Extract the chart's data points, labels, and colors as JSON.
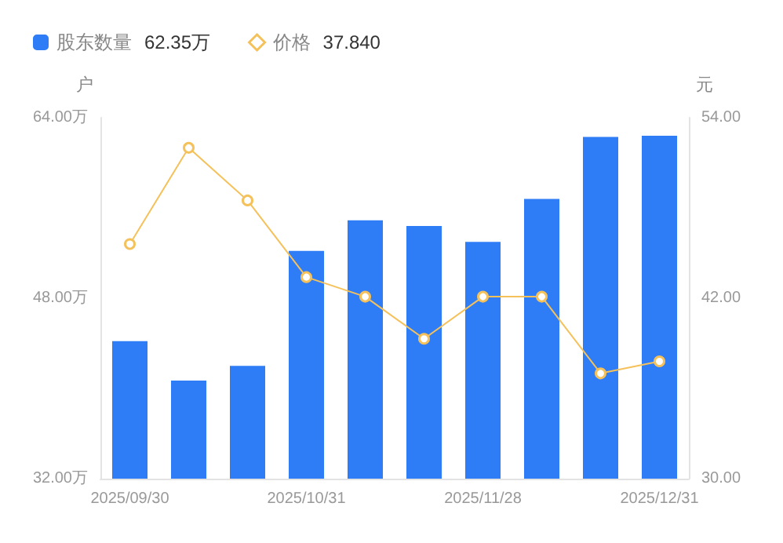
{
  "chart_data": {
    "type": "bar",
    "categories": [
      "2025/09/30",
      null,
      null,
      "2025/10/31",
      null,
      null,
      "2025/11/28",
      null,
      null,
      "2025/12/31"
    ],
    "series": [
      {
        "name": "股东数量",
        "color": "#2e7cf6",
        "values": [
          44.2,
          40.7,
          42.0,
          52.2,
          54.9,
          54.4,
          53.0,
          56.8,
          62.3,
          62.4
        ]
      },
      {
        "name": "价格",
        "type": "line",
        "axis": "y2",
        "color": "#f5c15a",
        "values": [
          45.6,
          52.0,
          48.5,
          43.4,
          42.1,
          39.3,
          42.1,
          42.1,
          37.0,
          37.8
        ]
      }
    ],
    "annotations": [
      "62.35万",
      "37.840"
    ],
    "ylabel": "户",
    "y2label": "元",
    "ylim": [
      32,
      64
    ],
    "yticks": [
      {
        "value": 32,
        "label": "32.00万"
      },
      {
        "value": 48,
        "label": "48.00万"
      },
      {
        "value": 64,
        "label": "64.00万"
      }
    ],
    "y2lim": [
      30,
      54
    ],
    "y2ticks": [
      {
        "value": 30,
        "label": "30.00"
      },
      {
        "value": 42,
        "label": "42.00"
      },
      {
        "value": 54,
        "label": "54.00"
      }
    ],
    "legend": "top left",
    "marker": "circle",
    "line_style": "solid",
    "grid": false
  }
}
